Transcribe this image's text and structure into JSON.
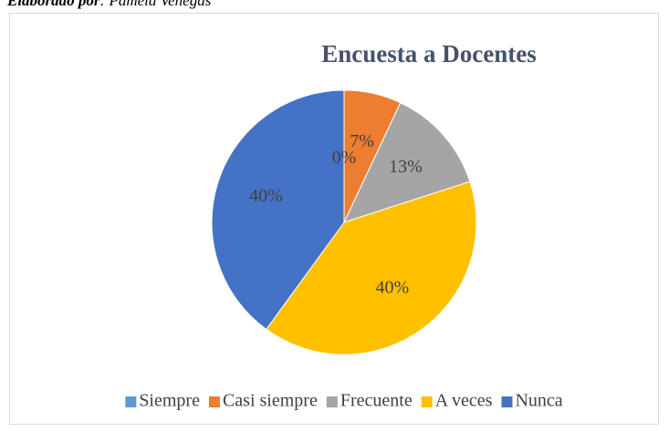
{
  "caption_label": "Elaborado por",
  "caption_text": ": Pamela Venegas",
  "chart_data": {
    "type": "pie",
    "title": "Encuesta a Docentes",
    "categories": [
      "Siempre",
      "Casi siempre",
      "Frecuente",
      "A veces",
      "Nunca"
    ],
    "values": [
      0,
      7,
      13,
      40,
      40
    ],
    "value_labels": [
      "0%",
      "7%",
      "13%",
      "40%",
      "40%"
    ],
    "colors": [
      "#5b9bd5",
      "#ed7d31",
      "#a5a5a5",
      "#ffc000",
      "#4472c4"
    ],
    "legend": "bottom"
  }
}
